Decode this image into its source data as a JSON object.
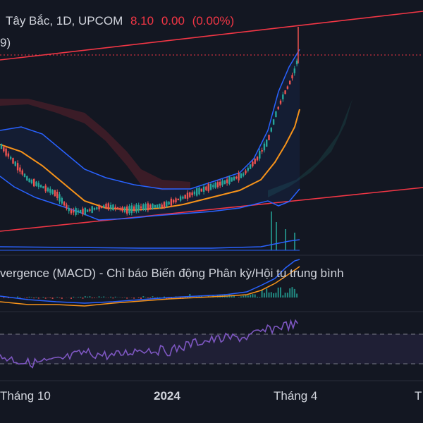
{
  "header": {
    "symbol_text": "Tây Bắc, 1D, UPCOM",
    "price": "8.10",
    "change": "0.00",
    "change_pct": "(0.00%)",
    "partial_text": "9)"
  },
  "macd_panel": {
    "title": "vergence (MACD) - Chỉ báo Biến động Phân kỳ/Hội tụ trung bình"
  },
  "time_axis": {
    "labels": [
      "Tháng 10",
      "2024",
      "Tháng 4",
      "T"
    ]
  },
  "colors": {
    "background": "#131722",
    "up": "#26a69a",
    "down": "#ef5350",
    "trendline": "#f23645",
    "bollinger": "#2962ff",
    "ma_orange": "#f7931a",
    "rsi": "#7e57c2",
    "text": "#d1d4dc"
  }
}
